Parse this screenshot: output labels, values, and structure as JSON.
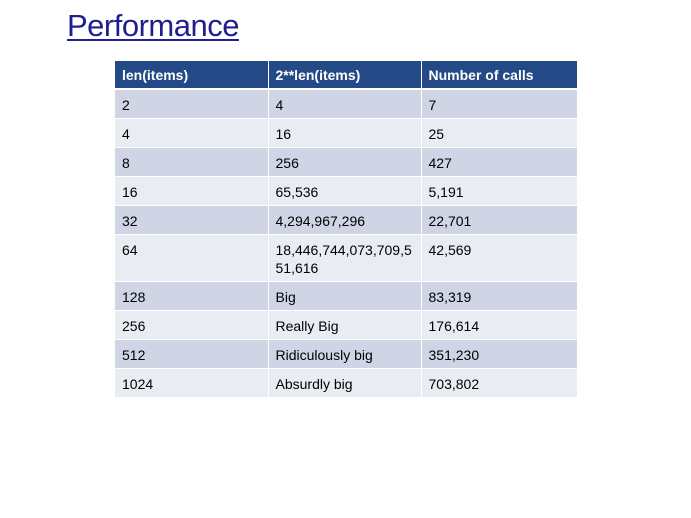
{
  "slide": {
    "title": "Performance"
  },
  "table": {
    "headers": [
      "len(items)",
      "2**len(items)",
      "Number of calls"
    ],
    "rows": [
      [
        "2",
        "4",
        "7"
      ],
      [
        "4",
        "16",
        "25"
      ],
      [
        "8",
        "256",
        "427"
      ],
      [
        "16",
        "65,536",
        "5,191"
      ],
      [
        "32",
        "4,294,967,296",
        "22,701"
      ],
      [
        "64",
        "18,446,744,073,709,551,616",
        "42,569"
      ],
      [
        "128",
        "Big",
        "83,319"
      ],
      [
        "256",
        "Really Big",
        "176,614"
      ],
      [
        "512",
        "Ridiculously big",
        "351,230"
      ],
      [
        "1024",
        "Absurdly big",
        "703,802"
      ]
    ]
  },
  "colors": {
    "title": "#1f1f8f",
    "header_bg": "#234a86",
    "row_dark": "#cfd5e4",
    "row_light": "#e9ecf3"
  }
}
